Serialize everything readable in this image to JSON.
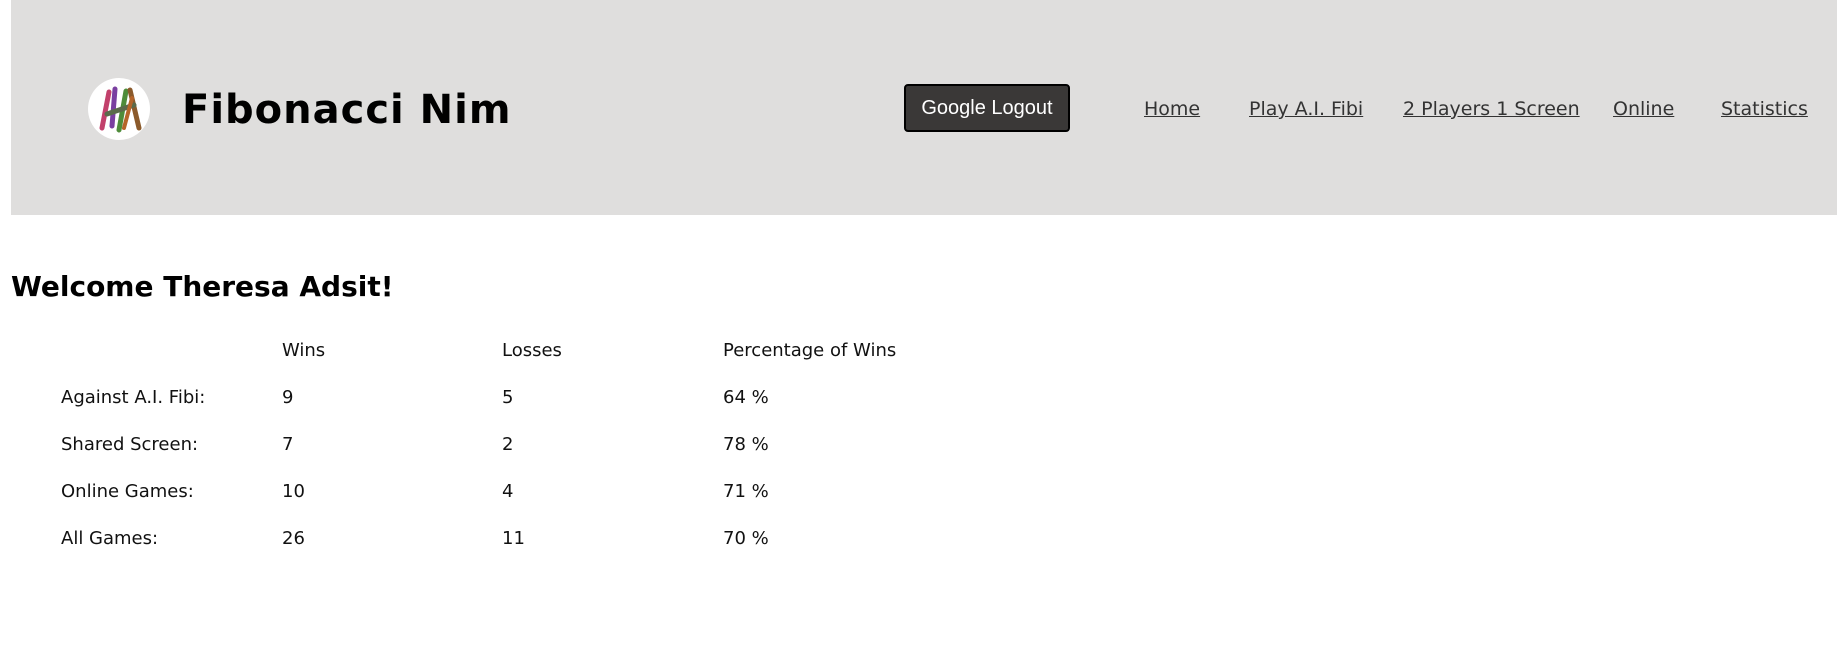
{
  "header": {
    "title": "Fibonacci Nim",
    "logout_label": "Google Logout",
    "nav": [
      {
        "label": "Home"
      },
      {
        "label": "Play A.I. Fibi"
      },
      {
        "label": "2 Players 1 Screen"
      },
      {
        "label": "Online"
      },
      {
        "label": "Statistics"
      }
    ],
    "logo_stick_colors": [
      "#c2406b",
      "#7a3fa0",
      "#4e8c3a",
      "#8b5a2b",
      "#5b6b4a",
      "#b5652a"
    ]
  },
  "main": {
    "welcome": "Welcome Theresa Adsit!",
    "stats": {
      "columns": [
        "",
        "Wins",
        "Losses",
        "Percentage of Wins"
      ],
      "rows": [
        {
          "label": "Against A.I. Fibi:",
          "wins": "9",
          "losses": "5",
          "pct": "64 %"
        },
        {
          "label": "Shared Screen:",
          "wins": "7",
          "losses": "2",
          "pct": "78 %"
        },
        {
          "label": "Online Games:",
          "wins": "10",
          "losses": "4",
          "pct": "71 %"
        },
        {
          "label": "All Games:",
          "wins": "26",
          "losses": "11",
          "pct": "70 %"
        }
      ]
    }
  }
}
